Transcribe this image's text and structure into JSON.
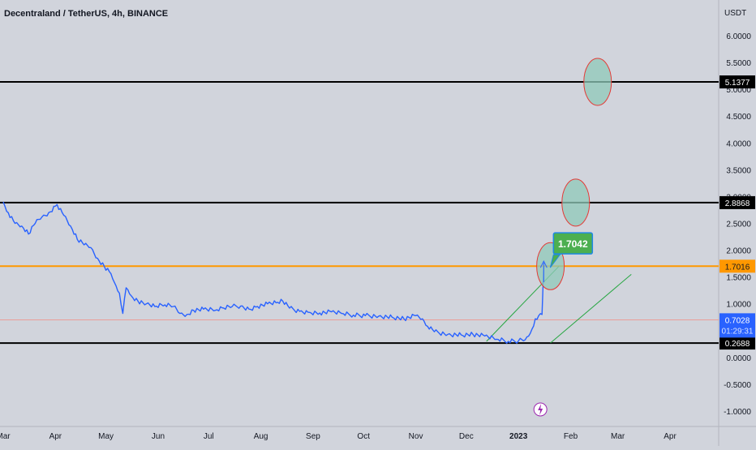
{
  "header": {
    "title": "Decentraland / TetherUS, 4h, BINANCE",
    "currency": "USDT"
  },
  "colors": {
    "background": "#d1d4dc",
    "price_line": "#2962ff",
    "orange_level": "#ff9800",
    "black_level": "#000000",
    "green_channel": "#26a641",
    "circle_fill": "#8fc9b9",
    "circle_stroke": "#e53935",
    "callout_fill": "#4caf50",
    "current_price_label": "#2962ff"
  },
  "chart_data": {
    "type": "line",
    "ylim": [
      -1.0,
      6.0
    ],
    "y_ticks": [
      "6.0000",
      "5.5000",
      "5.0000",
      "4.5000",
      "4.0000",
      "3.5000",
      "3.0000",
      "2.5000",
      "2.0000",
      "1.5000",
      "1.0000",
      "0.5000",
      "0.0000",
      "-0.5000",
      "-1.0000"
    ],
    "y_tick_values": [
      6.0,
      5.5,
      5.0,
      4.5,
      4.0,
      3.5,
      3.0,
      2.5,
      2.0,
      1.5,
      1.0,
      0.5,
      0.0,
      -0.5,
      -1.0
    ],
    "x_ticks": [
      "Mar",
      "Apr",
      "May",
      "Jun",
      "Jul",
      "Aug",
      "Sep",
      "Oct",
      "Nov",
      "Dec",
      "2023",
      "Feb",
      "Mar",
      "Apr"
    ],
    "x_tick_dates": [
      "2022-03-01",
      "2022-04-01",
      "2022-05-01",
      "2022-06-01",
      "2022-07-01",
      "2022-08-01",
      "2022-09-01",
      "2022-10-01",
      "2022-11-01",
      "2022-12-01",
      "2023-01-01",
      "2023-02-01",
      "2023-03-01",
      "2023-04-01"
    ],
    "x_range": [
      "2022-03-01",
      "2023-04-04"
    ],
    "series": [
      {
        "points": [
          [
            "2022-03-01",
            2.9
          ],
          [
            "2022-03-04",
            2.7
          ],
          [
            "2022-03-08",
            2.5
          ],
          [
            "2022-03-12",
            2.45
          ],
          [
            "2022-03-16",
            2.3
          ],
          [
            "2022-03-20",
            2.5
          ],
          [
            "2022-03-24",
            2.62
          ],
          [
            "2022-03-28",
            2.7
          ],
          [
            "2022-04-02",
            2.85
          ],
          [
            "2022-04-06",
            2.65
          ],
          [
            "2022-04-10",
            2.45
          ],
          [
            "2022-04-14",
            2.2
          ],
          [
            "2022-04-18",
            2.1
          ],
          [
            "2022-04-22",
            2.05
          ],
          [
            "2022-04-26",
            1.85
          ],
          [
            "2022-04-30",
            1.7
          ],
          [
            "2022-05-03",
            1.6
          ],
          [
            "2022-05-06",
            1.4
          ],
          [
            "2022-05-09",
            1.2
          ],
          [
            "2022-05-11",
            0.82
          ],
          [
            "2022-05-13",
            1.3
          ],
          [
            "2022-05-16",
            1.15
          ],
          [
            "2022-05-20",
            1.05
          ],
          [
            "2022-05-25",
            1.0
          ],
          [
            "2022-05-30",
            0.95
          ],
          [
            "2022-06-05",
            0.98
          ],
          [
            "2022-06-10",
            0.95
          ],
          [
            "2022-06-14",
            0.82
          ],
          [
            "2022-06-18",
            0.8
          ],
          [
            "2022-06-22",
            0.88
          ],
          [
            "2022-06-28",
            0.9
          ],
          [
            "2022-07-05",
            0.88
          ],
          [
            "2022-07-10",
            0.92
          ],
          [
            "2022-07-15",
            0.95
          ],
          [
            "2022-07-20",
            0.96
          ],
          [
            "2022-07-25",
            0.9
          ],
          [
            "2022-07-30",
            0.95
          ],
          [
            "2022-08-05",
            1.0
          ],
          [
            "2022-08-10",
            1.02
          ],
          [
            "2022-08-14",
            1.05
          ],
          [
            "2022-08-18",
            0.92
          ],
          [
            "2022-08-24",
            0.86
          ],
          [
            "2022-08-30",
            0.84
          ],
          [
            "2022-09-05",
            0.83
          ],
          [
            "2022-09-12",
            0.85
          ],
          [
            "2022-09-18",
            0.82
          ],
          [
            "2022-09-25",
            0.79
          ],
          [
            "2022-10-02",
            0.78
          ],
          [
            "2022-10-10",
            0.77
          ],
          [
            "2022-10-18",
            0.75
          ],
          [
            "2022-10-25",
            0.72
          ],
          [
            "2022-11-01",
            0.78
          ],
          [
            "2022-11-05",
            0.72
          ],
          [
            "2022-11-08",
            0.58
          ],
          [
            "2022-11-12",
            0.48
          ],
          [
            "2022-11-20",
            0.43
          ],
          [
            "2022-11-28",
            0.42
          ],
          [
            "2022-12-05",
            0.43
          ],
          [
            "2022-12-12",
            0.4
          ],
          [
            "2022-12-19",
            0.34
          ],
          [
            "2022-12-26",
            0.3
          ],
          [
            "2023-01-01",
            0.31
          ],
          [
            "2023-01-05",
            0.33
          ],
          [
            "2023-01-08",
            0.45
          ],
          [
            "2023-01-11",
            0.72
          ],
          [
            "2023-01-13",
            0.78
          ],
          [
            "2023-01-15",
            0.8
          ],
          [
            "2023-01-16",
            1.7
          ]
        ]
      }
    ],
    "levels": [
      {
        "value": 5.1377,
        "label": "5.1377",
        "color": "black"
      },
      {
        "value": 2.8868,
        "label": "2.8868",
        "color": "black"
      },
      {
        "value": 1.7016,
        "label": "1.7016",
        "color": "orange"
      },
      {
        "value": 0.2688,
        "label": "0.2688",
        "color": "black"
      }
    ],
    "current_price": {
      "value": 0.7028,
      "label": "0.7028",
      "countdown": "01:29:31"
    },
    "callout": {
      "label": "1.7042",
      "value": 1.7042,
      "date": "2023-01-16"
    },
    "target_circles": [
      {
        "date": "2023-02-17",
        "value": 5.1377
      },
      {
        "date": "2023-02-04",
        "value": 2.8868
      },
      {
        "date": "2023-01-20",
        "value": 1.7016
      }
    ],
    "channel_lines": [
      [
        [
          "2022-12-13",
          0.3
        ],
        [
          "2023-01-25",
          1.7
        ]
      ],
      [
        [
          "2023-01-20",
          0.27
        ],
        [
          "2023-03-09",
          1.55
        ]
      ]
    ]
  }
}
